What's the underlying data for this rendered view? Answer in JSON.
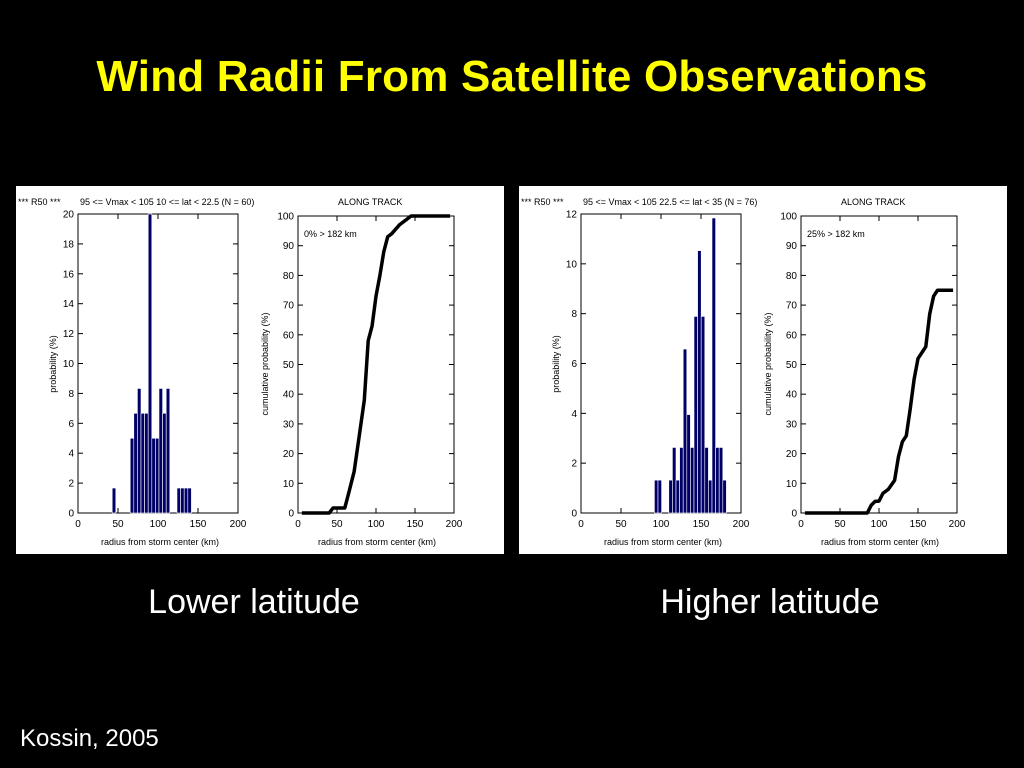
{
  "title": "Wind Radii From Satellite Observations",
  "credit": "Kossin, 2005",
  "colors": {
    "background": "#000000",
    "title": "#ffff00",
    "bar": "#000066",
    "line": "#000000"
  },
  "panels": [
    {
      "caption": "Lower latitude",
      "header": {
        "tag": "*** R50 ***",
        "condition": "95 <= Vmax < 105  10 <= lat < 22.5  (N = 60)",
        "track": "ALONG TRACK"
      },
      "annotation": "0% > 182 km",
      "xlabel": "radius from storm center (km)",
      "hist_ylabel": "probability (%)",
      "cdf_ylabel": "cumulative probability (%)"
    },
    {
      "caption": "Higher latitude",
      "header": {
        "tag": "*** R50 ***",
        "condition": "95 <= Vmax < 105  22.5 <= lat < 35  (N = 76)",
        "track": "ALONG TRACK"
      },
      "annotation": "25% > 182 km",
      "xlabel": "radius from storm center (km)",
      "hist_ylabel": "probability (%)",
      "cdf_ylabel": "cumulative probability (%)"
    }
  ],
  "chart_data": [
    {
      "type": "bar",
      "title": "*** R50 ***   95 <= Vmax < 105  10 <= lat < 22.5  (N = 60)",
      "xlabel": "radius from storm center (km)",
      "ylabel": "probability (%)",
      "xlim": [
        0,
        200
      ],
      "ylim": [
        0,
        20
      ],
      "xticks": [
        0,
        50,
        100,
        150,
        200
      ],
      "yticks": [
        0,
        2,
        4,
        6,
        8,
        10,
        12,
        14,
        16,
        18,
        20
      ],
      "bin_width": 4.5,
      "x": [
        45,
        67.5,
        72,
        76.5,
        81,
        85.5,
        90,
        94.5,
        99,
        103.5,
        108,
        112.5,
        126,
        130.5,
        135,
        139.5
      ],
      "values": [
        1.67,
        5.0,
        6.67,
        8.33,
        6.67,
        6.67,
        20.0,
        5.0,
        5.0,
        8.33,
        6.67,
        8.33,
        1.67,
        1.67,
        1.67,
        1.67
      ]
    },
    {
      "type": "line",
      "title": "ALONG TRACK",
      "annotation": "0% > 182 km",
      "xlabel": "radius from storm center (km)",
      "ylabel": "cumulative probability (%)",
      "xlim": [
        0,
        200
      ],
      "ylim": [
        0,
        100
      ],
      "xticks": [
        0,
        50,
        100,
        150,
        200
      ],
      "yticks": [
        0,
        10,
        20,
        30,
        40,
        50,
        60,
        70,
        80,
        90,
        100
      ],
      "x": [
        5,
        40,
        45,
        60,
        65,
        72,
        78,
        85,
        90,
        95,
        100,
        105,
        110,
        115,
        120,
        130,
        140,
        145,
        195
      ],
      "y": [
        0,
        0,
        1.7,
        1.7,
        6.7,
        14,
        25,
        38,
        58,
        63,
        73,
        80,
        88,
        93,
        94,
        97,
        99,
        100,
        100
      ]
    },
    {
      "type": "bar",
      "title": "*** R50 ***   95 <= Vmax < 105  22.5 <= lat < 35  (N = 76)",
      "xlabel": "radius from storm center (km)",
      "ylabel": "probability (%)",
      "xlim": [
        0,
        200
      ],
      "ylim": [
        0,
        12
      ],
      "xticks": [
        0,
        50,
        100,
        150,
        200
      ],
      "yticks": [
        0,
        2,
        4,
        6,
        8,
        10,
        12
      ],
      "bin_width": 4.5,
      "x": [
        94,
        98.5,
        112,
        116.5,
        121,
        125.5,
        130,
        134.5,
        139,
        143.5,
        148,
        152.5,
        157,
        161.5,
        166,
        170.5,
        175,
        179.5
      ],
      "values": [
        1.32,
        1.32,
        1.32,
        2.63,
        1.32,
        2.63,
        6.58,
        3.95,
        2.63,
        7.89,
        10.53,
        7.89,
        2.63,
        1.32,
        11.84,
        2.63,
        2.63,
        1.32
      ]
    },
    {
      "type": "line",
      "title": "ALONG TRACK",
      "annotation": "25% > 182 km",
      "xlabel": "radius from storm center (km)",
      "ylabel": "cumulative probability (%)",
      "xlim": [
        0,
        200
      ],
      "ylim": [
        0,
        100
      ],
      "xticks": [
        0,
        50,
        100,
        150,
        200
      ],
      "yticks": [
        0,
        10,
        20,
        30,
        40,
        50,
        60,
        70,
        80,
        90,
        100
      ],
      "x": [
        5,
        85,
        90,
        95,
        100,
        105,
        112,
        120,
        125,
        130,
        135,
        140,
        145,
        150,
        155,
        160,
        165,
        170,
        175,
        180,
        185,
        195
      ],
      "y": [
        0,
        0,
        2.6,
        3.9,
        4,
        6.6,
        8,
        11,
        19,
        24,
        26,
        35,
        45,
        52,
        54,
        56,
        67,
        73,
        75,
        75,
        75,
        75
      ]
    }
  ]
}
